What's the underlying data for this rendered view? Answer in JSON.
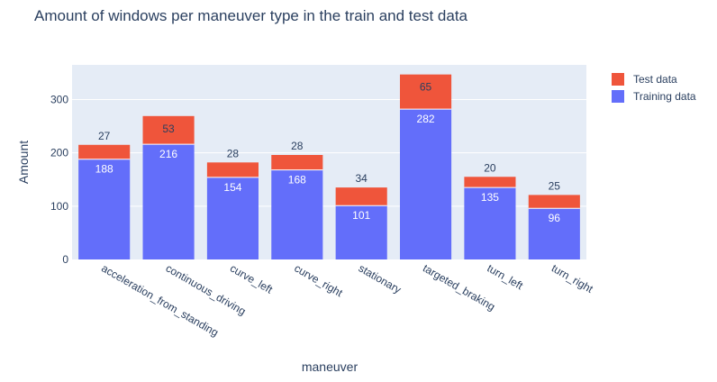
{
  "chart_data": {
    "type": "bar",
    "stacked": true,
    "title": "Amount of windows per maneuver type in the train and test data",
    "xlabel": "maneuver",
    "ylabel": "Amount",
    "ylim": [
      0,
      365
    ],
    "yticks": [
      0,
      100,
      200,
      300
    ],
    "grid": true,
    "legend_position": "top-right",
    "categories": [
      "acceleration_from_standing",
      "continuous_driving",
      "curve_left",
      "curve_right",
      "stationary",
      "targeted_braking",
      "turn_left",
      "turn_right"
    ],
    "series": [
      {
        "name": "Training data",
        "color": "#636efa",
        "values": [
          188,
          216,
          154,
          168,
          101,
          282,
          135,
          96
        ]
      },
      {
        "name": "Test data",
        "color": "#ef553b",
        "values": [
          27,
          53,
          28,
          28,
          34,
          65,
          20,
          25
        ]
      }
    ]
  },
  "colors": {
    "plot_background": "#e5ecf6",
    "gridline": "#ffffff",
    "text": "#2a3f5f"
  }
}
